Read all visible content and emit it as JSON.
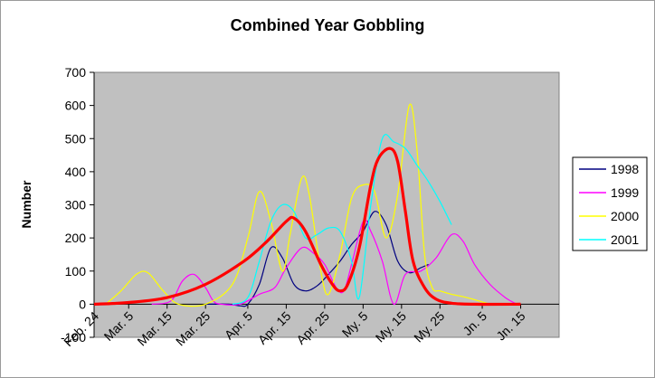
{
  "chart_data": {
    "type": "line",
    "title": "Combined Year Gobbling",
    "xlabel": "",
    "ylabel": "Number",
    "ylim": [
      -100,
      700
    ],
    "yticks": [
      -100,
      0,
      100,
      200,
      300,
      400,
      500,
      600,
      700
    ],
    "ytick_labels": [
      "-100",
      "0",
      "100",
      "200",
      "300",
      "400",
      "500",
      "600",
      "700"
    ],
    "x_range": [
      "Feb. 24",
      "Jn. 25"
    ],
    "xtick_labels": [
      "Feb. 24",
      "Mar. 5",
      "Mar. 15",
      "Mar. 25",
      "Apr. 5",
      "Apr. 15",
      "Apr. 25",
      "My. 5",
      "My. 15",
      "My. 25",
      "Jn. 5",
      "Jn. 15"
    ],
    "legend_position": "right",
    "grid": false,
    "plot_background": "#c0c0c0",
    "series": [
      {
        "name": "1998",
        "color": "#000080",
        "points": [
          [
            "Mar. 25",
            0
          ],
          [
            "Mar. 31",
            0
          ],
          [
            "Apr. 3",
            -5
          ],
          [
            "Apr. 5",
            0
          ],
          [
            "Apr. 8",
            60
          ],
          [
            "Apr. 11",
            170
          ],
          [
            "Apr. 14",
            140
          ],
          [
            "Apr. 17",
            60
          ],
          [
            "Apr. 20",
            40
          ],
          [
            "Apr. 23",
            55
          ],
          [
            "Apr. 26",
            90
          ],
          [
            "Apr. 29",
            130
          ],
          [
            "May. 2",
            180
          ],
          [
            "May. 5",
            220
          ],
          [
            "May. 8",
            280
          ],
          [
            "May. 11",
            240
          ],
          [
            "May. 14",
            130
          ],
          [
            "May. 17",
            95
          ],
          [
            "May. 20",
            110
          ],
          [
            "May. 22",
            120
          ]
        ]
      },
      {
        "name": "1999",
        "color": "#ff00ff",
        "points": [
          [
            "Mar. 11",
            0
          ],
          [
            "Mar. 16",
            10
          ],
          [
            "Mar. 19",
            70
          ],
          [
            "Mar. 22",
            90
          ],
          [
            "Mar. 25",
            50
          ],
          [
            "Mar. 27",
            10
          ],
          [
            "Mar. 29",
            0
          ],
          [
            "Apr. 3",
            0
          ],
          [
            "Apr. 8",
            30
          ],
          [
            "Apr. 12",
            50
          ],
          [
            "Apr. 15",
            110
          ],
          [
            "Apr. 19",
            170
          ],
          [
            "Apr. 22",
            155
          ],
          [
            "Apr. 25",
            120
          ],
          [
            "Apr. 28",
            50
          ],
          [
            "Apr. 30",
            40
          ],
          [
            "May. 2",
            120
          ],
          [
            "May. 5",
            250
          ],
          [
            "May. 7",
            220
          ],
          [
            "May. 10",
            130
          ],
          [
            "May. 13",
            0
          ],
          [
            "May. 16",
            90
          ],
          [
            "May. 20",
            100
          ],
          [
            "May. 24",
            140
          ],
          [
            "May. 28",
            210
          ],
          [
            "May. 31",
            190
          ],
          [
            "Jun. 3",
            120
          ],
          [
            "Jun. 7",
            60
          ],
          [
            "Jun. 11",
            20
          ],
          [
            "Jun. 14",
            0
          ]
        ]
      },
      {
        "name": "2000",
        "color": "#ffff00",
        "points": [
          [
            "Feb. 27",
            0
          ],
          [
            "Mar. 3",
            40
          ],
          [
            "Mar. 7",
            90
          ],
          [
            "Mar. 10",
            95
          ],
          [
            "Mar. 14",
            40
          ],
          [
            "Mar. 18",
            0
          ],
          [
            "Mar. 25",
            0
          ],
          [
            "Apr. 1",
            60
          ],
          [
            "Apr. 5",
            200
          ],
          [
            "Apr. 8",
            340
          ],
          [
            "Apr. 11",
            250
          ],
          [
            "Apr. 14",
            100
          ],
          [
            "Apr. 16",
            210
          ],
          [
            "Apr. 19",
            380
          ],
          [
            "Apr. 21",
            330
          ],
          [
            "Apr. 24",
            100
          ],
          [
            "Apr. 26",
            30
          ],
          [
            "Apr. 29",
            150
          ],
          [
            "May. 2",
            320
          ],
          [
            "May. 5",
            360
          ],
          [
            "May. 8",
            340
          ],
          [
            "May. 11",
            200
          ],
          [
            "May. 14",
            330
          ],
          [
            "May. 17",
            600
          ],
          [
            "May. 19",
            470
          ],
          [
            "May. 21",
            150
          ],
          [
            "May. 23",
            50
          ],
          [
            "May. 25",
            40
          ],
          [
            "May. 28",
            30
          ],
          [
            "Jun. 1",
            20
          ],
          [
            "Jun. 7",
            0
          ]
        ]
      },
      {
        "name": "2001",
        "color": "#00ffff",
        "points": [
          [
            "Apr. 1",
            0
          ],
          [
            "Apr. 5",
            20
          ],
          [
            "Apr. 8",
            130
          ],
          [
            "Apr. 11",
            250
          ],
          [
            "Apr. 14",
            300
          ],
          [
            "Apr. 17",
            280
          ],
          [
            "Apr. 20",
            200
          ],
          [
            "Apr. 23",
            210
          ],
          [
            "Apr. 26",
            230
          ],
          [
            "Apr. 29",
            220
          ],
          [
            "May. 2",
            130
          ],
          [
            "May. 4",
            20
          ],
          [
            "May. 7",
            300
          ],
          [
            "May. 10",
            500
          ],
          [
            "May. 13",
            490
          ],
          [
            "May. 16",
            470
          ],
          [
            "May. 19",
            420
          ],
          [
            "May. 22",
            370
          ],
          [
            "May. 25",
            310
          ],
          [
            "May. 28",
            240
          ]
        ]
      },
      {
        "name": "",
        "color": "#ff0000",
        "points": [
          [
            "Feb. 24",
            0
          ],
          [
            "Mar. 5",
            5
          ],
          [
            "Mar. 15",
            20
          ],
          [
            "Mar. 25",
            60
          ],
          [
            "Apr. 4",
            130
          ],
          [
            "Apr. 10",
            190
          ],
          [
            "Apr. 15",
            250
          ],
          [
            "Apr. 17",
            260
          ],
          [
            "Apr. 20",
            220
          ],
          [
            "Apr. 24",
            120
          ],
          [
            "Apr. 27",
            60
          ],
          [
            "Apr. 29",
            40
          ],
          [
            "May. 1",
            60
          ],
          [
            "May. 4",
            170
          ],
          [
            "May. 7",
            360
          ],
          [
            "May. 9",
            440
          ],
          [
            "May. 12",
            470
          ],
          [
            "May. 14",
            430
          ],
          [
            "May. 16",
            280
          ],
          [
            "May. 18",
            130
          ],
          [
            "May. 21",
            50
          ],
          [
            "May. 24",
            15
          ],
          [
            "May. 28",
            3
          ],
          [
            "Jun. 3",
            0
          ],
          [
            "Jun. 15",
            0
          ]
        ]
      }
    ]
  }
}
